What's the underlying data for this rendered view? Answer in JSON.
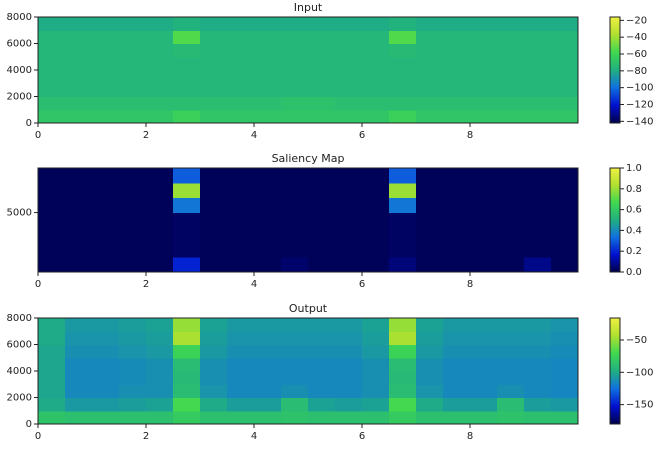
{
  "chart_data": [
    {
      "type": "heatmap",
      "title": "Input",
      "xlim": [
        0,
        10
      ],
      "xticks": [
        0,
        2,
        4,
        6,
        8
      ],
      "ylim": [
        0,
        8000
      ],
      "yticks": [
        0,
        2000,
        4000,
        6000,
        8000
      ],
      "clim": [
        -142,
        -16
      ],
      "cticks": [
        {
          "value": -20,
          "label": "−20"
        },
        {
          "value": -40,
          "label": "−40"
        },
        {
          "value": -60,
          "label": "−60"
        },
        {
          "value": -80,
          "label": "−80"
        },
        {
          "value": -100,
          "label": "−100"
        },
        {
          "value": -120,
          "label": "−120"
        },
        {
          "value": -140,
          "label": "−140"
        }
      ],
      "colormap": [
        "#00004a",
        "#0010d0",
        "#1070e0",
        "#20b080",
        "#40d850",
        "#b0e030",
        "#f0f040"
      ],
      "z": [
        [
          -68,
          -68,
          -68,
          -68,
          -68,
          -62,
          -68,
          -68,
          -68,
          -68,
          -68,
          -68,
          -68,
          -62,
          -68,
          -68,
          -68,
          -68,
          -68,
          -68
        ],
        [
          -72,
          -72,
          -72,
          -72,
          -72,
          -72,
          -72,
          -72,
          -72,
          -70,
          -70,
          -72,
          -72,
          -72,
          -72,
          -72,
          -72,
          -72,
          -72,
          -72
        ],
        [
          -76,
          -76,
          -76,
          -76,
          -76,
          -76,
          -76,
          -76,
          -76,
          -76,
          -76,
          -76,
          -76,
          -76,
          -76,
          -76,
          -76,
          -76,
          -76,
          -76
        ],
        [
          -76,
          -76,
          -76,
          -76,
          -76,
          -76,
          -76,
          -76,
          -76,
          -76,
          -76,
          -76,
          -76,
          -76,
          -76,
          -76,
          -76,
          -76,
          -76,
          -76
        ],
        [
          -76,
          -76,
          -76,
          -76,
          -76,
          -76,
          -76,
          -76,
          -76,
          -76,
          -76,
          -76,
          -76,
          -76,
          -76,
          -76,
          -76,
          -76,
          -76,
          -76
        ],
        [
          -76,
          -76,
          -76,
          -76,
          -76,
          -74,
          -76,
          -76,
          -76,
          -76,
          -76,
          -76,
          -76,
          -74,
          -76,
          -76,
          -76,
          -76,
          -76,
          -76
        ],
        [
          -76,
          -76,
          -76,
          -76,
          -76,
          -55,
          -76,
          -76,
          -76,
          -76,
          -76,
          -76,
          -76,
          -55,
          -76,
          -76,
          -76,
          -76,
          -76,
          -76
        ],
        [
          -80,
          -80,
          -80,
          -80,
          -80,
          -78,
          -80,
          -80,
          -80,
          -80,
          -80,
          -80,
          -80,
          -78,
          -80,
          -80,
          -80,
          -80,
          -80,
          -80
        ]
      ]
    },
    {
      "type": "heatmap",
      "title": "Saliency Map",
      "xlim": [
        0,
        10
      ],
      "xticks": [
        0,
        2,
        4,
        6,
        8
      ],
      "ylim": [
        1000,
        8000
      ],
      "yticks": [
        5000
      ],
      "clim": [
        0,
        1
      ],
      "cticks": [
        {
          "value": 0,
          "label": "0.0"
        },
        {
          "value": 0.2,
          "label": "0.2"
        },
        {
          "value": 0.4,
          "label": "0.4"
        },
        {
          "value": 0.6,
          "label": "0.6"
        },
        {
          "value": 0.8,
          "label": "0.8"
        },
        {
          "value": 1,
          "label": "1.0"
        }
      ],
      "colormap": [
        "#00004a",
        "#0010d0",
        "#1070e0",
        "#20b080",
        "#40d850",
        "#b0e030",
        "#f0f040"
      ],
      "z": [
        [
          0.02,
          0.02,
          0.02,
          0.02,
          0.02,
          0.2,
          0.02,
          0.02,
          0.02,
          0.04,
          0.02,
          0.02,
          0.02,
          0.06,
          0.02,
          0.02,
          0.02,
          0.02,
          0.08,
          0.02
        ],
        [
          0.02,
          0.02,
          0.02,
          0.02,
          0.02,
          0.03,
          0.02,
          0.02,
          0.02,
          0.02,
          0.02,
          0.02,
          0.02,
          0.03,
          0.02,
          0.02,
          0.02,
          0.02,
          0.02,
          0.02
        ],
        [
          0.02,
          0.02,
          0.02,
          0.02,
          0.02,
          0.03,
          0.02,
          0.02,
          0.02,
          0.02,
          0.02,
          0.02,
          0.02,
          0.03,
          0.02,
          0.02,
          0.02,
          0.02,
          0.02,
          0.02
        ],
        [
          0.02,
          0.02,
          0.02,
          0.02,
          0.02,
          0.03,
          0.02,
          0.02,
          0.02,
          0.02,
          0.02,
          0.02,
          0.02,
          0.03,
          0.02,
          0.02,
          0.02,
          0.02,
          0.02,
          0.02
        ],
        [
          0.02,
          0.02,
          0.02,
          0.02,
          0.02,
          0.35,
          0.02,
          0.02,
          0.02,
          0.02,
          0.02,
          0.02,
          0.02,
          0.35,
          0.02,
          0.02,
          0.02,
          0.02,
          0.02,
          0.02
        ],
        [
          0.02,
          0.02,
          0.02,
          0.02,
          0.02,
          0.8,
          0.02,
          0.02,
          0.02,
          0.02,
          0.02,
          0.02,
          0.02,
          0.8,
          0.02,
          0.02,
          0.02,
          0.02,
          0.02,
          0.02
        ],
        [
          0.02,
          0.02,
          0.02,
          0.02,
          0.02,
          0.3,
          0.02,
          0.02,
          0.02,
          0.02,
          0.02,
          0.02,
          0.02,
          0.3,
          0.02,
          0.02,
          0.02,
          0.02,
          0.02,
          0.02
        ]
      ]
    },
    {
      "type": "heatmap",
      "title": "Output",
      "xlim": [
        0,
        10
      ],
      "xticks": [
        0,
        2,
        4,
        6,
        8
      ],
      "ylim": [
        0,
        8000
      ],
      "yticks": [
        0,
        2000,
        4000,
        6000,
        8000
      ],
      "clim": [
        -180,
        -16
      ],
      "cticks": [
        {
          "value": -50,
          "label": "−50"
        },
        {
          "value": -100,
          "label": "−100"
        },
        {
          "value": -150,
          "label": "−150"
        }
      ],
      "colormap": [
        "#00004a",
        "#0010d0",
        "#1070e0",
        "#20b080",
        "#40d850",
        "#b0e030",
        "#f0f040"
      ],
      "z": [
        [
          -85,
          -88,
          -88,
          -88,
          -88,
          -80,
          -88,
          -88,
          -88,
          -86,
          -88,
          -88,
          -88,
          -80,
          -88,
          -88,
          -88,
          -86,
          -88,
          -88
        ],
        [
          -100,
          -108,
          -108,
          -106,
          -104,
          -70,
          -100,
          -106,
          -106,
          -90,
          -104,
          -106,
          -104,
          -70,
          -100,
          -106,
          -106,
          -90,
          -106,
          -108
        ],
        [
          -102,
          -115,
          -115,
          -112,
          -112,
          -90,
          -110,
          -115,
          -115,
          -112,
          -115,
          -115,
          -112,
          -90,
          -110,
          -115,
          -115,
          -112,
          -115,
          -116
        ],
        [
          -102,
          -115,
          -115,
          -114,
          -112,
          -92,
          -112,
          -115,
          -115,
          -115,
          -115,
          -115,
          -112,
          -92,
          -112,
          -115,
          -115,
          -115,
          -115,
          -116
        ],
        [
          -102,
          -115,
          -115,
          -114,
          -112,
          -90,
          -112,
          -115,
          -115,
          -115,
          -115,
          -115,
          -112,
          -90,
          -112,
          -115,
          -115,
          -115,
          -115,
          -116
        ],
        [
          -102,
          -112,
          -112,
          -110,
          -108,
          -75,
          -108,
          -112,
          -112,
          -112,
          -112,
          -112,
          -108,
          -75,
          -108,
          -112,
          -112,
          -112,
          -112,
          -114
        ],
        [
          -100,
          -110,
          -110,
          -108,
          -106,
          -45,
          -106,
          -110,
          -110,
          -110,
          -110,
          -110,
          -106,
          -45,
          -106,
          -110,
          -110,
          -110,
          -110,
          -112
        ],
        [
          -100,
          -108,
          -108,
          -106,
          -104,
          -50,
          -104,
          -108,
          -108,
          -108,
          -108,
          -108,
          -104,
          -50,
          -104,
          -108,
          -108,
          -108,
          -108,
          -110
        ]
      ]
    }
  ]
}
